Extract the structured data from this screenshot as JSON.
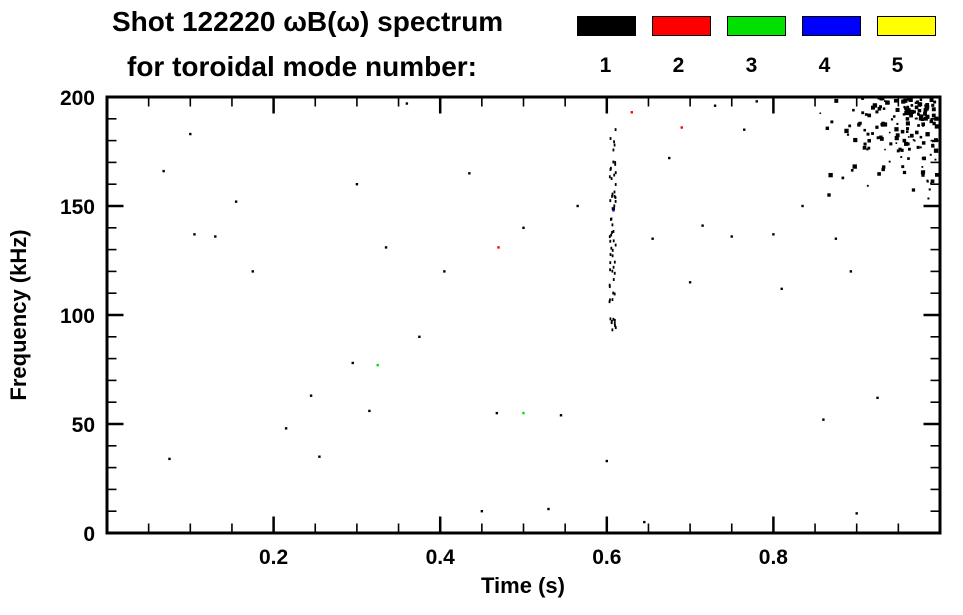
{
  "title": {
    "line1": "Shot 122220 ωB(ω) spectrum",
    "line2": "for toroidal mode number:"
  },
  "legend": {
    "items": [
      {
        "label": "1",
        "color": "#000000"
      },
      {
        "label": "2",
        "color": "#ff0000"
      },
      {
        "label": "3",
        "color": "#00e100"
      },
      {
        "label": "4",
        "color": "#0000ff"
      },
      {
        "label": "5",
        "color": "#ffff00"
      }
    ]
  },
  "chart_data": {
    "type": "scatter",
    "title": "Shot 122220 ωB(ω) spectrum for toroidal mode number: 1–5",
    "xlabel": "Time (s)",
    "ylabel": "Frequency (kHz)",
    "xlim": [
      0.0,
      1.0
    ],
    "ylim": [
      0,
      200
    ],
    "xticks": [
      0.2,
      0.4,
      0.6,
      0.8
    ],
    "x_minor_step": 0.05,
    "yticks": [
      0,
      50,
      100,
      150,
      200
    ],
    "y_minor_step": 10,
    "grid": false,
    "legend_position": "top-right",
    "axis_color": "#000000",
    "background": "#ffffff",
    "seed": 7,
    "series": [
      {
        "name": "n=1",
        "color": "#000000",
        "points": [
          [
            0.075,
            34
          ],
          [
            0.068,
            166
          ],
          [
            0.1,
            183
          ],
          [
            0.105,
            137
          ],
          [
            0.13,
            136
          ],
          [
            0.155,
            152
          ],
          [
            0.175,
            120
          ],
          [
            0.215,
            48
          ],
          [
            0.245,
            63
          ],
          [
            0.255,
            35
          ],
          [
            0.295,
            78
          ],
          [
            0.3,
            160
          ],
          [
            0.315,
            56
          ],
          [
            0.335,
            131
          ],
          [
            0.36,
            197
          ],
          [
            0.375,
            90
          ],
          [
            0.405,
            120
          ],
          [
            0.435,
            165
          ],
          [
            0.45,
            10
          ],
          [
            0.468,
            55
          ],
          [
            0.5,
            140
          ],
          [
            0.53,
            11
          ],
          [
            0.545,
            54
          ],
          [
            0.565,
            150
          ],
          [
            0.6,
            33
          ],
          [
            0.645,
            5
          ],
          [
            0.655,
            135
          ],
          [
            0.675,
            172
          ],
          [
            0.7,
            115
          ],
          [
            0.715,
            141
          ],
          [
            0.73,
            196
          ],
          [
            0.75,
            136
          ],
          [
            0.765,
            185
          ],
          [
            0.78,
            198
          ],
          [
            0.8,
            137
          ],
          [
            0.81,
            112
          ],
          [
            0.835,
            150
          ],
          [
            0.86,
            52
          ],
          [
            0.875,
            135
          ],
          [
            0.893,
            120
          ],
          [
            0.9,
            9
          ],
          [
            0.925,
            62
          ]
        ]
      },
      {
        "name": "n=2",
        "color": "#ff0000",
        "points": [
          [
            0.47,
            131
          ],
          [
            0.63,
            193
          ],
          [
            0.69,
            186
          ]
        ]
      },
      {
        "name": "n=3",
        "color": "#00e100",
        "points": [
          [
            0.5,
            55
          ],
          [
            0.325,
            77
          ]
        ]
      },
      {
        "name": "n=4",
        "color": "#0000ff",
        "points": [
          [
            0.608,
            148
          ]
        ]
      },
      {
        "name": "n=5",
        "color": "#ffff00",
        "points": []
      }
    ],
    "clusters": [
      {
        "series": 0,
        "t": [
          0.853,
          0.998
        ],
        "f": [
          150,
          199.5
        ],
        "count": 175,
        "bias": "corner",
        "size": 2.2
      },
      {
        "series": 0,
        "t": [
          0.603,
          0.611
        ],
        "f": [
          88,
          186
        ],
        "count": 62,
        "size": 1.8,
        "tall": true
      }
    ]
  }
}
